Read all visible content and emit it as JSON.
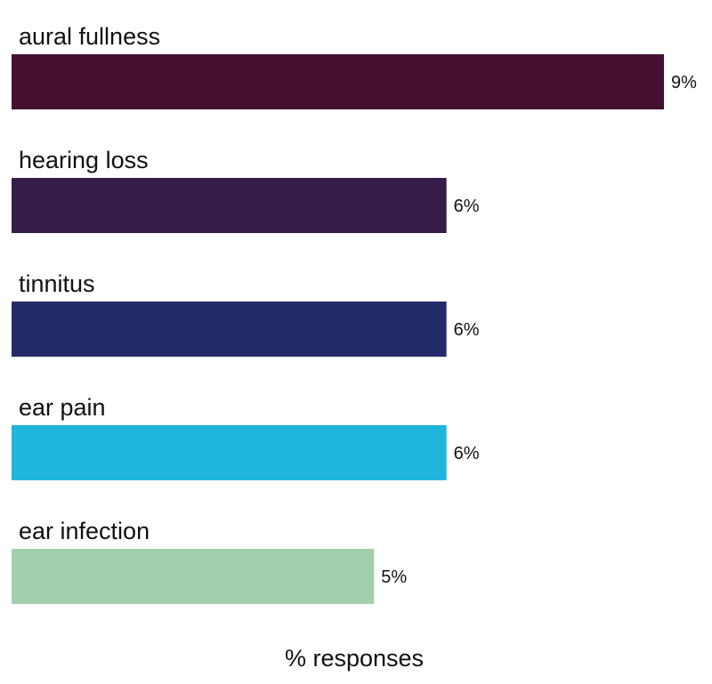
{
  "chart_data": {
    "type": "bar",
    "orientation": "horizontal",
    "categories": [
      "aural fullness",
      "hearing loss",
      "tinnitus",
      "ear pain",
      "ear infection"
    ],
    "values": [
      9,
      6,
      6,
      6,
      5
    ],
    "value_labels": [
      "9%",
      "6%",
      "6%",
      "6%",
      "5%"
    ],
    "colors": [
      "#451030",
      "#341e49",
      "#242b69",
      "#20b5dd",
      "#a3d0ac"
    ],
    "xlabel": "% responses",
    "ylabel": "",
    "title": "",
    "xlim": [
      0,
      9
    ],
    "grid": false,
    "legend": "none"
  }
}
